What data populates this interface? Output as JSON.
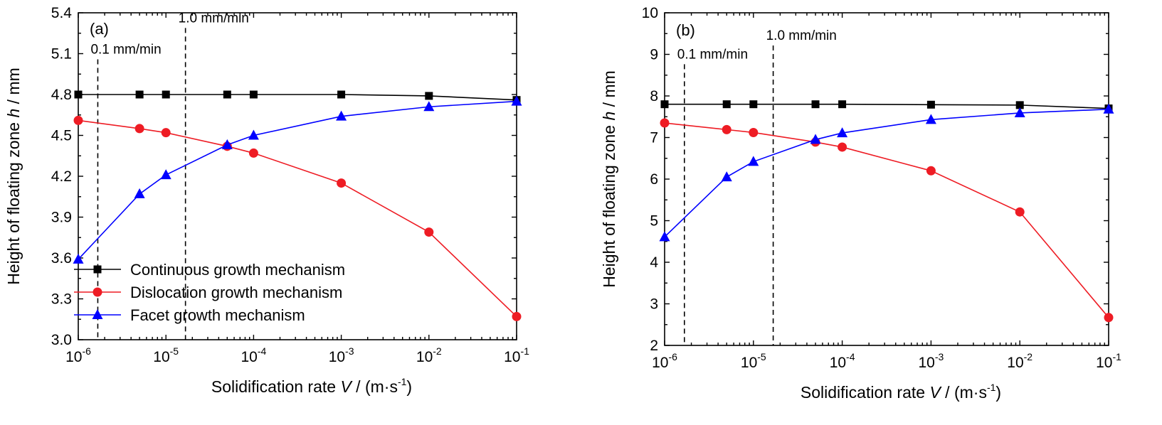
{
  "chart_data": [
    {
      "type": "line",
      "panel_label": "(a)",
      "xlabel_main": "Solidification rate ",
      "xlabel_var": "V",
      "xlabel_unit": " / (m·s",
      "xlabel_unit_sup": "-1",
      "xlabel_close": ")",
      "ylabel_main": "Height of floating zone ",
      "ylabel_var": "h",
      "ylabel_unit": " / mm",
      "x_scale": "log",
      "xlim": [
        1e-06,
        0.1
      ],
      "ylim": [
        3.0,
        5.4
      ],
      "x_tick_exponents": [
        "-6",
        "-5",
        "-4",
        "-3",
        "-2",
        "-1"
      ],
      "y_ticks": [
        "3.0",
        "3.3",
        "3.6",
        "3.9",
        "4.2",
        "4.5",
        "4.8",
        "5.1",
        "5.4"
      ],
      "y_tick_values": [
        3.0,
        3.3,
        3.6,
        3.9,
        4.2,
        4.5,
        4.8,
        5.1,
        5.4
      ],
      "annotations": [
        {
          "text": "0.1 mm/min",
          "x": 1.67e-06,
          "x_anchor_line": 1.67e-06,
          "y_text": 5.1
        },
        {
          "text": "1.0 mm/min",
          "x": 1.67e-05,
          "x_anchor_line": 1.67e-05,
          "y_text": 5.33
        }
      ],
      "legend": {
        "position": "bottom-left"
      },
      "series": [
        {
          "name": "Continuous growth mechanism",
          "color": "#000000",
          "marker": "square",
          "x": [
            1e-06,
            5e-06,
            1e-05,
            5e-05,
            0.0001,
            0.001,
            0.01,
            0.1
          ],
          "y": [
            4.8,
            4.8,
            4.8,
            4.8,
            4.8,
            4.8,
            4.79,
            4.76
          ]
        },
        {
          "name": "Dislocation growth mechanism",
          "color": "#ee1c24",
          "marker": "circle",
          "x": [
            1e-06,
            5e-06,
            1e-05,
            5e-05,
            0.0001,
            0.001,
            0.01,
            0.1
          ],
          "y": [
            4.61,
            4.55,
            4.52,
            4.42,
            4.37,
            4.15,
            3.79,
            3.17
          ]
        },
        {
          "name": "Facet growth mechanism",
          "color": "#0000ff",
          "marker": "triangle",
          "x": [
            1e-06,
            5e-06,
            1e-05,
            5e-05,
            0.0001,
            0.001,
            0.01,
            0.1
          ],
          "y": [
            3.59,
            4.07,
            4.21,
            4.43,
            4.5,
            4.64,
            4.71,
            4.75
          ]
        }
      ]
    },
    {
      "type": "line",
      "panel_label": "(b)",
      "xlabel_main": "Solidification rate ",
      "xlabel_var": "V",
      "xlabel_unit": " / (m·s",
      "xlabel_unit_sup": "-1",
      "xlabel_close": ")",
      "ylabel_main": "Height of floating zone ",
      "ylabel_var": "h",
      "ylabel_unit": " / mm",
      "x_scale": "log",
      "xlim": [
        1e-06,
        0.1
      ],
      "ylim": [
        2,
        10
      ],
      "x_tick_exponents": [
        "-6",
        "-5",
        "-4",
        "-3",
        "-2",
        "-1"
      ],
      "y_ticks": [
        "2",
        "3",
        "4",
        "5",
        "6",
        "7",
        "8",
        "9",
        "10"
      ],
      "y_tick_values": [
        2,
        3,
        4,
        5,
        6,
        7,
        8,
        9,
        10
      ],
      "annotations": [
        {
          "text": "0.1 mm/min",
          "x": 1.67e-06,
          "x_anchor_line": 1.67e-06,
          "y_text": 8.9
        },
        {
          "text": "1.0 mm/min",
          "x": 1.67e-05,
          "x_anchor_line": 1.67e-05,
          "y_text": 9.35
        }
      ],
      "series": [
        {
          "name": "Continuous growth mechanism",
          "color": "#000000",
          "marker": "square",
          "x": [
            1e-06,
            5e-06,
            1e-05,
            5e-05,
            0.0001,
            0.001,
            0.01,
            0.1
          ],
          "y": [
            7.8,
            7.8,
            7.8,
            7.8,
            7.8,
            7.79,
            7.78,
            7.7
          ]
        },
        {
          "name": "Dislocation growth mechanism",
          "color": "#ee1c24",
          "marker": "circle",
          "x": [
            1e-06,
            5e-06,
            1e-05,
            5e-05,
            0.0001,
            0.001,
            0.01,
            0.1
          ],
          "y": [
            7.35,
            7.19,
            7.12,
            6.89,
            6.77,
            6.2,
            5.21,
            2.67
          ]
        },
        {
          "name": "Facet growth mechanism",
          "color": "#0000ff",
          "marker": "triangle",
          "x": [
            1e-06,
            5e-06,
            1e-05,
            5e-05,
            0.0001,
            0.001,
            0.01,
            0.1
          ],
          "y": [
            4.61,
            6.05,
            6.42,
            6.95,
            7.11,
            7.43,
            7.59,
            7.68
          ]
        }
      ]
    }
  ]
}
